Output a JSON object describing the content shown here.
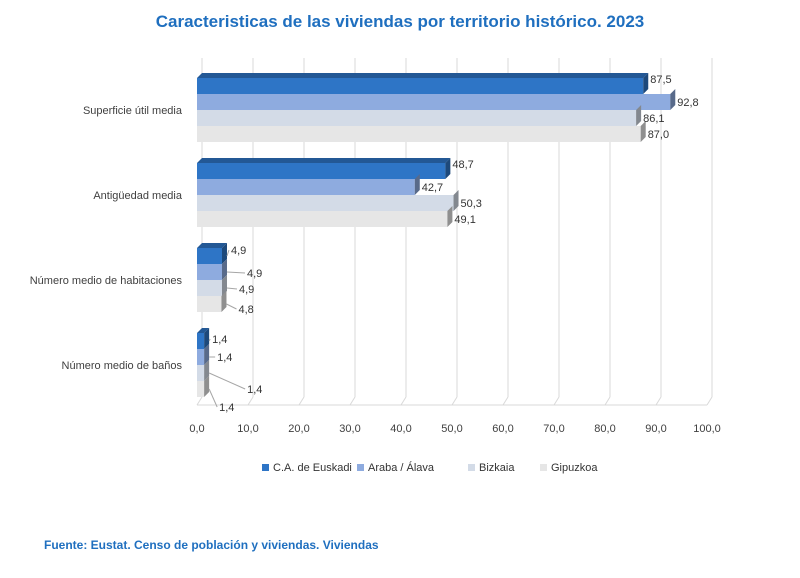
{
  "title": "Caracteristicas de las viviendas por territorio histórico. 2023",
  "source": "Fuente: Eustat. Censo de población y viviendas. Viviendas",
  "chart_data": {
    "type": "bar",
    "orientation": "horizontal",
    "categories": [
      "Superficie útil media",
      "Antigüedad media",
      "Número medio de habitaciones",
      "Número medio de baños"
    ],
    "series": [
      {
        "name": "C.A. de Euskadi",
        "color": "#2e75c6",
        "values": [
          87.5,
          48.7,
          4.9,
          1.4
        ],
        "labels": [
          "87,5",
          "48,7",
          "4,9",
          "1,4"
        ]
      },
      {
        "name": "Araba / Álava",
        "color": "#8eabdf",
        "values": [
          92.8,
          42.7,
          4.9,
          1.4
        ],
        "labels": [
          "92,8",
          "42,7",
          "4,9",
          "1,4"
        ]
      },
      {
        "name": "Bizkaia",
        "color": "#d3dbe7",
        "values": [
          86.1,
          50.3,
          4.9,
          1.4
        ],
        "labels": [
          "86,1",
          "50,3",
          "4,9",
          "1,4"
        ]
      },
      {
        "name": "Gipuzkoa",
        "color": "#e6e6e6",
        "values": [
          87.0,
          49.1,
          4.8,
          1.4
        ],
        "labels": [
          "87,0",
          "49,1",
          "4,8",
          "1,4"
        ]
      }
    ],
    "xlim": [
      0,
      100
    ],
    "xticks": [
      "0,0",
      "10,0",
      "20,0",
      "30,0",
      "40,0",
      "50,0",
      "60,0",
      "70,0",
      "80,0",
      "90,0",
      "100,0"
    ],
    "grid": true,
    "legend_position": "bottom"
  }
}
